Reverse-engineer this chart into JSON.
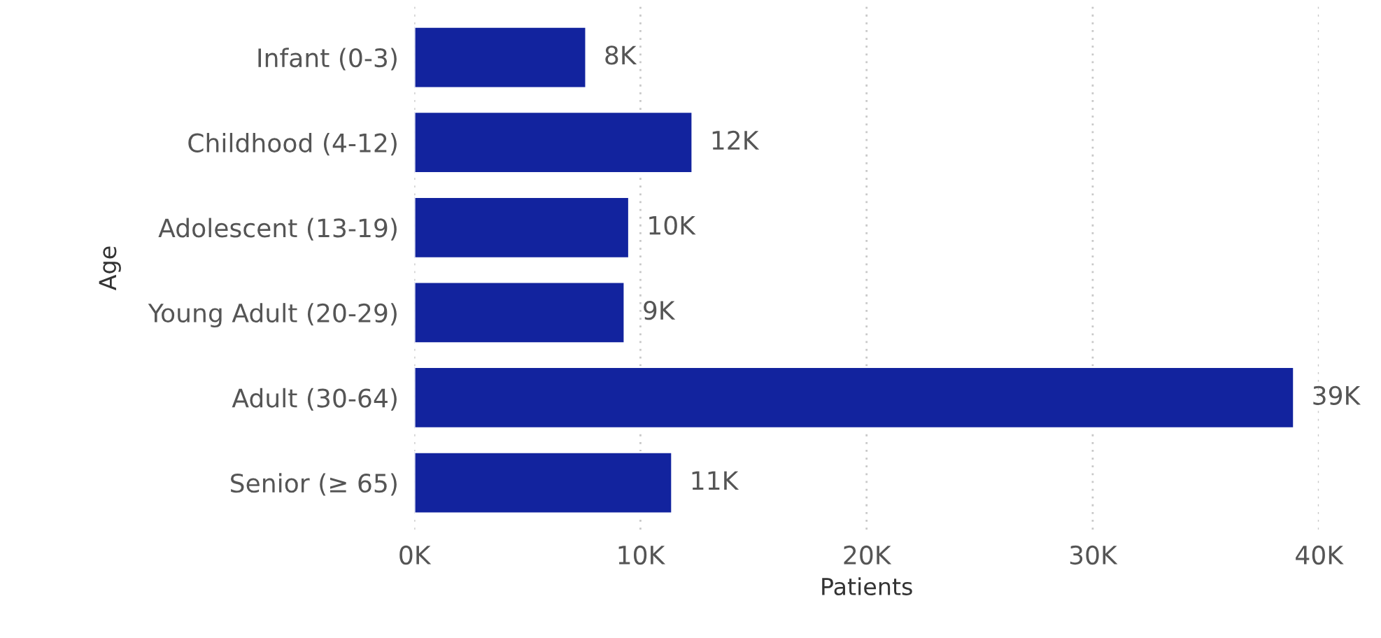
{
  "chart_data": {
    "type": "bar",
    "orientation": "horizontal",
    "xlabel": "Patients",
    "ylabel": "Age",
    "categories": [
      "Infant (0-3)",
      "Childhood (4-12)",
      "Adolescent (13-19)",
      "Young Adult (20-29)",
      "Adult (30-64)",
      "Senior (≥ 65)"
    ],
    "values": [
      7.6,
      12.3,
      9.5,
      9.3,
      38.9,
      11.4
    ],
    "value_labels": [
      "8K",
      "12K",
      "10K",
      "9K",
      "39K",
      "11K"
    ],
    "color": "#12239e",
    "xlim": [
      0,
      40
    ],
    "xticks": [
      {
        "value": 0,
        "label": "0K"
      },
      {
        "value": 10,
        "label": "10K"
      },
      {
        "value": 20,
        "label": "20K"
      },
      {
        "value": 30,
        "label": "30K"
      },
      {
        "value": 40,
        "label": "40K"
      }
    ],
    "grid": "x",
    "legend": false
  }
}
